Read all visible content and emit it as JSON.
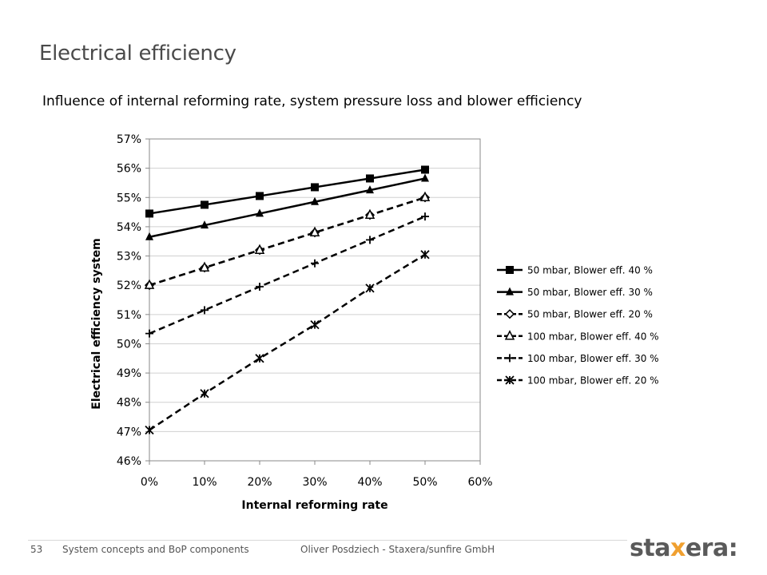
{
  "slide": {
    "title": "Electrical efficiency",
    "subtitle": "Influence of internal reforming rate, system pressure loss and blower efficiency"
  },
  "footer": {
    "page_number": "53",
    "topic": "System concepts and BoP components",
    "author": "Oliver Posdziech - Staxera/sunfire GmbH"
  },
  "logo": {
    "prefix": "sta",
    "accent": "x",
    "suffix": "era:",
    "accent_color": "#f0a030"
  },
  "chart_data": {
    "type": "line",
    "xlabel": "Internal reforming rate",
    "ylabel": "Electrical efficiency system",
    "x": [
      0,
      10,
      20,
      30,
      40,
      50
    ],
    "xlim": [
      0,
      60
    ],
    "ylim": [
      46,
      57
    ],
    "x_ticks": [
      "0%",
      "10%",
      "20%",
      "30%",
      "40%",
      "50%",
      "60%"
    ],
    "y_ticks": [
      "46%",
      "47%",
      "48%",
      "49%",
      "50%",
      "51%",
      "52%",
      "53%",
      "54%",
      "55%",
      "56%",
      "57%"
    ],
    "grid": "horizontal",
    "legend": "right",
    "series": [
      {
        "name": "50 mbar, Blower eff. 40 %",
        "marker": "square",
        "dash": "solid",
        "values": [
          54.45,
          54.75,
          55.05,
          55.35,
          55.65,
          55.95
        ]
      },
      {
        "name": "50 mbar, Blower eff. 30 %",
        "marker": "triangle",
        "dash": "solid",
        "values": [
          53.65,
          54.05,
          54.45,
          54.85,
          55.25,
          55.65
        ]
      },
      {
        "name": "50 mbar, Blower eff. 20 %",
        "marker": "diamond-open",
        "dash": "dashed",
        "values": [
          52.0,
          52.6,
          53.2,
          53.8,
          54.4,
          55.0
        ]
      },
      {
        "name": "100 mbar, Blower eff. 40 %",
        "marker": "triangle-open",
        "dash": "dashed",
        "values": [
          52.0,
          52.6,
          53.2,
          53.8,
          54.4,
          55.0
        ]
      },
      {
        "name": "100 mbar, Blower eff. 30 %",
        "marker": "plus",
        "dash": "dashed",
        "values": [
          50.35,
          51.15,
          51.95,
          52.75,
          53.55,
          54.35
        ]
      },
      {
        "name": "100 mbar, Blower eff. 20 %",
        "marker": "star",
        "dash": "dashed",
        "values": [
          47.05,
          48.3,
          49.5,
          50.65,
          51.9,
          53.05
        ]
      }
    ]
  }
}
